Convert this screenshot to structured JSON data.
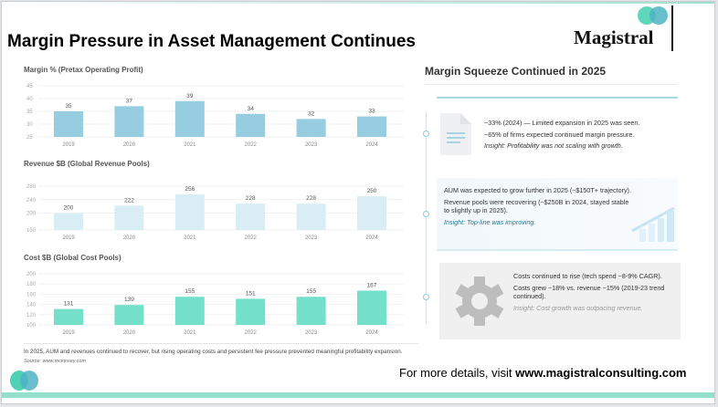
{
  "title": "Margin Pressure in Asset Management Continues",
  "logo": {
    "text": "Magistral",
    "colors": [
      "#4fd1b5",
      "#4fb3c6"
    ]
  },
  "chart_data": [
    {
      "type": "bar",
      "title": "Margin % (Pretax Operating Profit)",
      "categories": [
        "2019",
        "2020",
        "2021",
        "2022",
        "2023",
        "2024"
      ],
      "values": [
        35,
        37,
        39,
        34,
        32,
        33
      ],
      "yticks": [
        25,
        30,
        35,
        40,
        45
      ],
      "ylim": [
        25,
        45
      ],
      "color": "#96cde0",
      "grid": true
    },
    {
      "type": "bar",
      "title": "Revenue $B (Global Revenue Pools)",
      "categories": [
        "2019",
        "2020",
        "2021",
        "2022",
        "2023",
        "2024"
      ],
      "values": [
        200,
        222,
        256,
        228,
        228,
        250
      ],
      "yticks": [
        150,
        200,
        240,
        280
      ],
      "ylim": [
        150,
        280
      ],
      "color": "#d9edf4",
      "grid": true
    },
    {
      "type": "bar",
      "title": "Cost $B (Global Cost Pools)",
      "categories": [
        "2019",
        "2020",
        "2021",
        "2022",
        "2023",
        "2024"
      ],
      "values": [
        131,
        139,
        155,
        151,
        155,
        167
      ],
      "yticks": [
        100,
        120,
        140,
        160,
        180,
        200
      ],
      "ylim": [
        100,
        200
      ],
      "color": "#74e0c9",
      "grid": true
    }
  ],
  "footnote": "In 2025, AUM and revenues continued to recover, but rising operating costs and persistent fee pressure prevented meaningful profitability expansion.",
  "source": "Source: www.mckinsey.com",
  "panel": {
    "heading": "Margin Squeeze Continued in 2025",
    "cards": [
      {
        "icon": "document-icon",
        "lines": [
          "~33% (2024) — Limited expansion in 2025 was seen.",
          "~65% of firms expected continued margin pressure."
        ],
        "insight": "Insight: Profitability was not scaling with growth."
      },
      {
        "icon": "bar-growth-icon",
        "lines": [
          "AUM was expected to grow further in 2025 (~$150T+ trajectory).",
          "Revenue pools were recovering (~$250B in 2024, stayed stable to slightly up in 2025)."
        ],
        "insight": "Insight: Top-line was improving."
      },
      {
        "icon": "gear-icon",
        "lines": [
          "Costs continued to rise (tech spend ~8-9% CAGR).",
          "Costs grew ~18% vs. revenue ~15% (2019-23 trend continued)."
        ],
        "insight": "Insight: Cost growth was outpacing revenue."
      }
    ]
  },
  "cta": {
    "prefix": "For more details, visit ",
    "link": "www.magistralconsulting.com"
  }
}
